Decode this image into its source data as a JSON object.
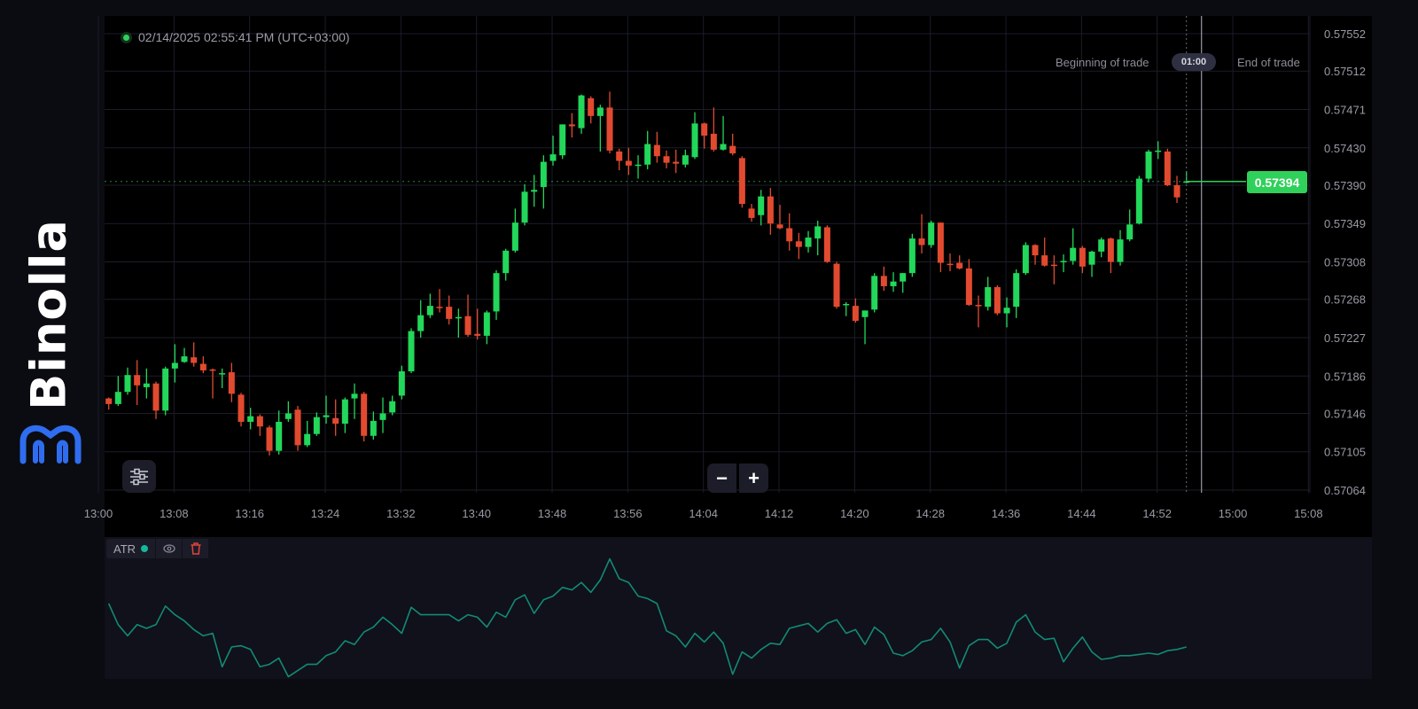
{
  "brand": {
    "name": "Binolla",
    "logo_color": "#2f6df0"
  },
  "header": {
    "timestamp": "02/14/2025 02:55:41 PM (UTC+03:00)",
    "live_indicator_color": "#2fd15a"
  },
  "trade": {
    "beginning_label": "Beginning of trade",
    "timer": "01:00",
    "end_label": "End of trade"
  },
  "current_price": {
    "value": "0.57394",
    "color": "#2fd15a"
  },
  "controls": {
    "settings_icon": "sliders-icon",
    "zoom_out_label": "−",
    "zoom_in_label": "+"
  },
  "indicator": {
    "name": "ATR",
    "color": "#14b89a",
    "eye_icon": "eye-icon",
    "delete_icon": "trash-icon",
    "delete_color": "#e0453a"
  },
  "colors": {
    "up": "#22d75a",
    "down": "#e24a2f",
    "background": "#000000",
    "grid": "#1b1c2a",
    "axis_text": "#9a9aa6"
  },
  "chart_data": [
    {
      "type": "candlestick",
      "interval": "1m",
      "y_ticks": [
        "0.57552",
        "0.57512",
        "0.57471",
        "0.57430",
        "0.57390",
        "0.57349",
        "0.57308",
        "0.57268",
        "0.57227",
        "0.57186",
        "0.57146",
        "0.57105",
        "0.57064"
      ],
      "x_ticks": [
        "13:00",
        "13:08",
        "13:16",
        "13:24",
        "13:32",
        "13:40",
        "13:48",
        "13:56",
        "14:04",
        "14:12",
        "14:20",
        "14:28",
        "14:36",
        "14:44",
        "14:52",
        "15:00",
        "15:08"
      ],
      "ylim": [
        0.57064,
        0.57552
      ],
      "grid": true,
      "candle_fields": [
        "time",
        "open",
        "high",
        "low",
        "close"
      ],
      "candles": [
        [
          "13:01",
          0.57162,
          0.57163,
          0.5715,
          0.57156
        ],
        [
          "13:02",
          0.57156,
          0.57186,
          0.57154,
          0.57169
        ],
        [
          "13:03",
          0.57169,
          0.57195,
          0.57166,
          0.57187
        ],
        [
          "13:04",
          0.57187,
          0.57203,
          0.57155,
          0.57176
        ],
        [
          "13:05",
          0.57174,
          0.57194,
          0.57162,
          0.57178
        ],
        [
          "13:06",
          0.57178,
          0.5718,
          0.5714,
          0.57149
        ],
        [
          "13:07",
          0.57149,
          0.57196,
          0.57144,
          0.57194
        ],
        [
          "13:08",
          0.57194,
          0.5722,
          0.57179,
          0.572
        ],
        [
          "13:09",
          0.57201,
          0.57216,
          0.572,
          0.57207
        ],
        [
          "13:10",
          0.57206,
          0.57222,
          0.57196,
          0.572
        ],
        [
          "13:11",
          0.57199,
          0.57207,
          0.57189,
          0.57192
        ],
        [
          "13:12",
          0.57193,
          0.57194,
          0.57162,
          0.57192
        ],
        [
          "13:13",
          0.57188,
          0.57194,
          0.57173,
          0.57189
        ],
        [
          "13:14",
          0.5719,
          0.572,
          0.57158,
          0.57167
        ],
        [
          "13:15",
          0.57166,
          0.57168,
          0.57132,
          0.57137
        ],
        [
          "13:16",
          0.57137,
          0.57152,
          0.57129,
          0.57143
        ],
        [
          "13:17",
          0.57143,
          0.57145,
          0.57122,
          0.57132
        ],
        [
          "13:18",
          0.57131,
          0.57133,
          0.57101,
          0.57106
        ],
        [
          "13:19",
          0.57106,
          0.57149,
          0.57102,
          0.57137
        ],
        [
          "13:20",
          0.5714,
          0.57159,
          0.57137,
          0.57146
        ],
        [
          "13:21",
          0.5715,
          0.57154,
          0.57106,
          0.57112
        ],
        [
          "13:22",
          0.57112,
          0.57138,
          0.5711,
          0.57124
        ],
        [
          "13:23",
          0.57124,
          0.57147,
          0.57122,
          0.57142
        ],
        [
          "13:24",
          0.57142,
          0.57165,
          0.57135,
          0.57144
        ],
        [
          "13:25",
          0.57141,
          0.57161,
          0.57122,
          0.57135
        ],
        [
          "13:26",
          0.57135,
          0.57163,
          0.57125,
          0.57161
        ],
        [
          "13:27",
          0.57162,
          0.57178,
          0.5714,
          0.57167
        ],
        [
          "13:28",
          0.57167,
          0.57169,
          0.57116,
          0.57122
        ],
        [
          "13:29",
          0.57122,
          0.57148,
          0.57118,
          0.57138
        ],
        [
          "13:30",
          0.57139,
          0.57163,
          0.57125,
          0.57146
        ],
        [
          "13:31",
          0.57147,
          0.57165,
          0.57144,
          0.57159
        ],
        [
          "13:32",
          0.57165,
          0.57197,
          0.57161,
          0.57191
        ],
        [
          "13:33",
          0.57191,
          0.57237,
          0.57189,
          0.57234
        ],
        [
          "13:34",
          0.57234,
          0.57267,
          0.57227,
          0.57251
        ],
        [
          "13:35",
          0.57251,
          0.57274,
          0.57248,
          0.57261
        ],
        [
          "13:36",
          0.5726,
          0.57279,
          0.57254,
          0.57259
        ],
        [
          "13:37",
          0.5726,
          0.57272,
          0.57241,
          0.57247
        ],
        [
          "13:38",
          0.57248,
          0.57258,
          0.57227,
          0.57249
        ],
        [
          "13:39",
          0.5725,
          0.57273,
          0.57228,
          0.5723
        ],
        [
          "13:40",
          0.57231,
          0.57258,
          0.57225,
          0.57229
        ],
        [
          "13:41",
          0.57229,
          0.57256,
          0.5722,
          0.57254
        ],
        [
          "13:42",
          0.57255,
          0.57299,
          0.57246,
          0.57296
        ],
        [
          "13:43",
          0.57296,
          0.57322,
          0.57288,
          0.5732
        ],
        [
          "13:44",
          0.5732,
          0.57365,
          0.57318,
          0.5735
        ],
        [
          "13:45",
          0.5735,
          0.57391,
          0.57347,
          0.57383
        ],
        [
          "13:46",
          0.57383,
          0.57401,
          0.57367,
          0.57385
        ],
        [
          "13:47",
          0.57388,
          0.57422,
          0.57365,
          0.57415
        ],
        [
          "13:48",
          0.57416,
          0.57443,
          0.57411,
          0.57423
        ],
        [
          "13:49",
          0.57422,
          0.57455,
          0.57418,
          0.57455
        ],
        [
          "13:50",
          0.57455,
          0.57467,
          0.57441,
          0.57453
        ],
        [
          "13:51",
          0.57451,
          0.57487,
          0.57445,
          0.57486
        ],
        [
          "13:52",
          0.57483,
          0.57485,
          0.57456,
          0.57464
        ],
        [
          "13:53",
          0.57464,
          0.57476,
          0.57426,
          0.57473
        ],
        [
          "13:54",
          0.57473,
          0.5749,
          0.57424,
          0.57427
        ],
        [
          "13:55",
          0.57426,
          0.57429,
          0.57406,
          0.57416
        ],
        [
          "13:56",
          0.57416,
          0.5743,
          0.57401,
          0.57411
        ],
        [
          "13:57",
          0.57411,
          0.57422,
          0.57397,
          0.57412
        ],
        [
          "13:58",
          0.57412,
          0.57448,
          0.57407,
          0.57434
        ],
        [
          "13:59",
          0.57433,
          0.57447,
          0.57414,
          0.57421
        ],
        [
          "14:00",
          0.57421,
          0.57427,
          0.57408,
          0.57414
        ],
        [
          "14:01",
          0.57415,
          0.57428,
          0.57403,
          0.57413
        ],
        [
          "14:02",
          0.57412,
          0.57428,
          0.57409,
          0.57422
        ],
        [
          "14:03",
          0.5742,
          0.57468,
          0.57418,
          0.57456
        ],
        [
          "14:04",
          0.57456,
          0.57457,
          0.57429,
          0.57443
        ],
        [
          "14:05",
          0.57445,
          0.57473,
          0.57426,
          0.57428
        ],
        [
          "14:06",
          0.57428,
          0.57464,
          0.57427,
          0.57434
        ],
        [
          "14:07",
          0.57432,
          0.57445,
          0.57422,
          0.57424
        ],
        [
          "14:08",
          0.57419,
          0.57421,
          0.57366,
          0.5737
        ],
        [
          "14:09",
          0.57365,
          0.5737,
          0.57351,
          0.57355
        ],
        [
          "14:10",
          0.57358,
          0.57385,
          0.57347,
          0.57378
        ],
        [
          "14:11",
          0.57378,
          0.57387,
          0.57337,
          0.57349
        ],
        [
          "14:12",
          0.57348,
          0.57369,
          0.57343,
          0.57344
        ],
        [
          "14:13",
          0.57344,
          0.5736,
          0.5732,
          0.5733
        ],
        [
          "14:14",
          0.5733,
          0.57339,
          0.57311,
          0.57324
        ],
        [
          "14:15",
          0.57324,
          0.57341,
          0.57318,
          0.57334
        ],
        [
          "14:16",
          0.57333,
          0.57352,
          0.57315,
          0.57346
        ],
        [
          "14:17",
          0.57345,
          0.57347,
          0.57307,
          0.57308
        ],
        [
          "14:18",
          0.57306,
          0.57308,
          0.57258,
          0.5726
        ],
        [
          "14:19",
          0.57262,
          0.57265,
          0.5725,
          0.57263
        ],
        [
          "14:20",
          0.57261,
          0.57269,
          0.57243,
          0.57245
        ],
        [
          "14:21",
          0.57249,
          0.57256,
          0.5722,
          0.57256
        ],
        [
          "14:22",
          0.57257,
          0.57296,
          0.57254,
          0.57293
        ],
        [
          "14:23",
          0.57293,
          0.57303,
          0.57277,
          0.57282
        ],
        [
          "14:24",
          0.57282,
          0.57297,
          0.57276,
          0.57287
        ],
        [
          "14:25",
          0.57287,
          0.57296,
          0.57275,
          0.57296
        ],
        [
          "14:26",
          0.57296,
          0.57338,
          0.57292,
          0.57333
        ],
        [
          "14:27",
          0.57333,
          0.57359,
          0.57317,
          0.57326
        ],
        [
          "14:28",
          0.57326,
          0.57352,
          0.57323,
          0.5735
        ],
        [
          "14:29",
          0.5735,
          0.5735,
          0.57297,
          0.57307
        ],
        [
          "14:30",
          0.57306,
          0.57317,
          0.57298,
          0.57305
        ],
        [
          "14:31",
          0.57307,
          0.57315,
          0.573,
          0.57301
        ],
        [
          "14:32",
          0.57301,
          0.57311,
          0.57261,
          0.57262
        ],
        [
          "14:33",
          0.57262,
          0.57272,
          0.57238,
          0.57261
        ],
        [
          "14:34",
          0.5726,
          0.57292,
          0.57256,
          0.57281
        ],
        [
          "14:35",
          0.57281,
          0.57283,
          0.57251,
          0.57253
        ],
        [
          "14:36",
          0.57253,
          0.5727,
          0.57238,
          0.57259
        ],
        [
          "14:37",
          0.5726,
          0.573,
          0.57248,
          0.57296
        ],
        [
          "14:38",
          0.57296,
          0.57329,
          0.57294,
          0.57326
        ],
        [
          "14:39",
          0.57326,
          0.57327,
          0.57305,
          0.57315
        ],
        [
          "14:40",
          0.57315,
          0.57334,
          0.57303,
          0.57304
        ],
        [
          "14:41",
          0.57305,
          0.57315,
          0.57284,
          0.57304
        ],
        [
          "14:42",
          0.57308,
          0.57316,
          0.57297,
          0.57309
        ],
        [
          "14:43",
          0.57309,
          0.57344,
          0.57305,
          0.57323
        ],
        [
          "14:44",
          0.57323,
          0.57325,
          0.57296,
          0.57303
        ],
        [
          "14:45",
          0.57305,
          0.5732,
          0.57292,
          0.57319
        ],
        [
          "14:46",
          0.57319,
          0.57334,
          0.57313,
          0.57332
        ],
        [
          "14:47",
          0.57333,
          0.57334,
          0.57296,
          0.57308
        ],
        [
          "14:48",
          0.57308,
          0.57342,
          0.57304,
          0.57332
        ],
        [
          "14:49",
          0.57332,
          0.57364,
          0.5733,
          0.57348
        ],
        [
          "14:50",
          0.57349,
          0.574,
          0.57348,
          0.57397
        ],
        [
          "14:51",
          0.57397,
          0.57428,
          0.57393,
          0.57426
        ],
        [
          "14:52",
          0.57426,
          0.57437,
          0.57418,
          0.57427
        ],
        [
          "14:53",
          0.57426,
          0.57429,
          0.57389,
          0.5739
        ],
        [
          "14:54",
          0.5739,
          0.574,
          0.57371,
          0.57377
        ],
        [
          "14:55",
          0.57393,
          0.57405,
          0.57392,
          0.57394
        ]
      ]
    },
    {
      "type": "line",
      "name": "ATR",
      "color": "#14b89a",
      "value_scale": "relative level 0-100 (no axis printed)",
      "values": [
        60,
        43,
        34,
        43,
        40,
        43,
        58,
        51,
        46,
        39,
        34,
        36,
        9,
        25,
        26,
        23,
        9,
        11,
        16,
        1,
        6,
        11,
        11,
        18,
        21,
        30,
        27,
        37,
        41,
        49,
        43,
        36,
        57,
        51,
        51,
        51,
        51,
        46,
        51,
        49,
        41,
        53,
        49,
        63,
        67,
        52,
        63,
        66,
        73,
        71,
        77,
        69,
        79,
        96,
        80,
        77,
        66,
        64,
        60,
        38,
        34,
        25,
        36,
        29,
        37,
        28,
        3,
        21,
        16,
        23,
        28,
        27,
        40,
        42,
        44,
        37,
        44,
        47,
        36,
        39,
        27,
        41,
        35,
        20,
        18,
        22,
        29,
        31,
        40,
        29,
        8,
        26,
        31,
        31,
        24,
        28,
        45,
        51,
        37,
        31,
        32,
        13,
        24,
        33,
        21,
        15,
        16,
        18,
        18,
        19,
        20,
        19,
        22,
        23,
        25
      ]
    }
  ]
}
